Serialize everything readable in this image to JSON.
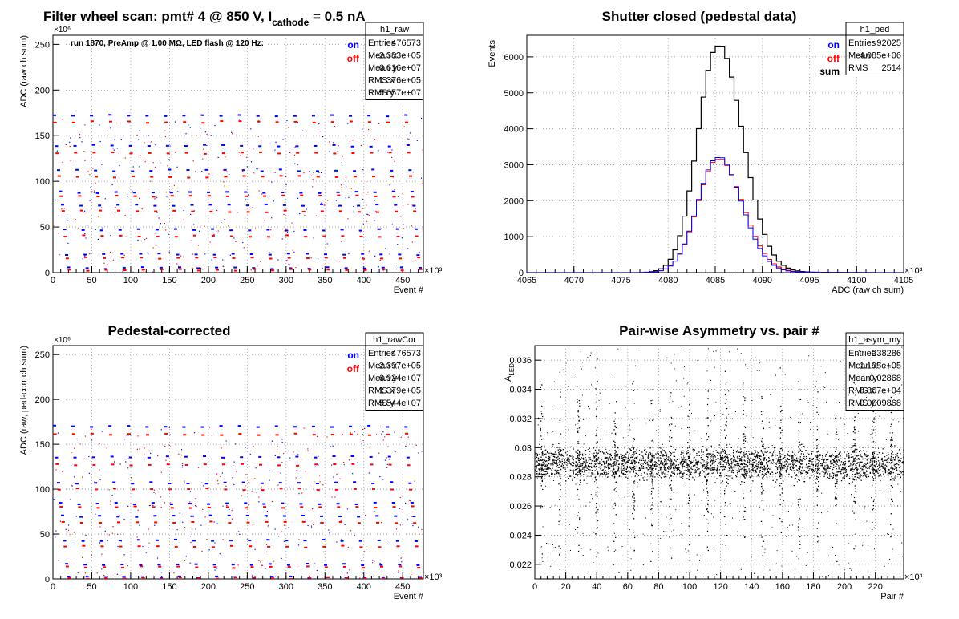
{
  "colors": {
    "on": "#0000ff",
    "off": "#ff0000",
    "sum": "#000000",
    "frame": "#000000",
    "grid": "#999999"
  },
  "chart_data": [
    {
      "type": "scatter",
      "title": "Filter wheel scan: pmt#   4 @   850 V, I",
      "title_sub": "cathode",
      "title_tail": " = 0.5 nA",
      "subtitle": "run 1870, PreAmp @ 1.00 MΩ, LED flash @  120 Hz:",
      "xlabel": "Event #",
      "ylabel": "ADC (raw ch sum)",
      "x_exponent": "×10³",
      "y_exponent": "×10⁶",
      "xlim": [
        0,
        476.6
      ],
      "ylim": [
        0,
        260
      ],
      "xticks": [
        "0",
        "50",
        "100",
        "150",
        "200",
        "250",
        "300",
        "350",
        "400",
        "450"
      ],
      "yticks": [
        "0",
        "50",
        "100",
        "150",
        "200",
        "250"
      ],
      "grid": true,
      "legend": {
        "on": "on",
        "off": "off",
        "placement": "top-right"
      },
      "series": [
        {
          "name": "on",
          "steps": [
            172,
            139,
            112,
            88,
            74,
            47,
            20,
            5
          ]
        },
        {
          "name": "off",
          "steps": [
            165,
            131,
            105,
            84,
            67,
            40,
            16,
            3
          ]
        }
      ],
      "stats": {
        "name": "h1_raw",
        "rows": [
          [
            "Entries",
            "476573"
          ],
          [
            "Mean x",
            "2.383e+05"
          ],
          [
            "Mean y",
            "6.616e+07"
          ],
          [
            "RMS x",
            "1.376e+05"
          ],
          [
            "RMS y",
            "5.657e+07"
          ]
        ]
      }
    },
    {
      "type": "histogram",
      "title": "Shutter closed (pedestal data)",
      "xlabel": "ADC (raw ch sum)",
      "ylabel": "Events",
      "x_exponent": "×10³",
      "xlim": [
        4065,
        4105
      ],
      "ylim": [
        0,
        6600
      ],
      "xticks": [
        "4065",
        "4070",
        "4075",
        "4080",
        "4085",
        "4090",
        "4095",
        "4100",
        "4105"
      ],
      "yticks": [
        "0",
        "1000",
        "2000",
        "3000",
        "4000",
        "5000",
        "6000"
      ],
      "grid": true,
      "legend": {
        "on": "on",
        "off": "off",
        "sum": "sum",
        "placement": "top-right"
      },
      "peak": {
        "x": 4085,
        "sum": 6300,
        "on": 3200,
        "off": 3150
      },
      "stats": {
        "name": "h1_ped",
        "rows": [
          [
            "Entries",
            "92025"
          ],
          [
            "Mean",
            "4.085e+06"
          ],
          [
            "RMS",
            "2514"
          ]
        ]
      }
    },
    {
      "type": "scatter",
      "title": "Pedestal-corrected",
      "xlabel": "Event #",
      "ylabel": "ADC (raw, ped-corr ch sum)",
      "x_exponent": "×10³",
      "y_exponent": "×10⁶",
      "xlim": [
        0,
        476.6
      ],
      "ylim": [
        0,
        260
      ],
      "xticks": [
        "0",
        "50",
        "100",
        "150",
        "200",
        "250",
        "300",
        "350",
        "400",
        "450"
      ],
      "yticks": [
        "0",
        "50",
        "100",
        "150",
        "200",
        "250"
      ],
      "grid": true,
      "legend": {
        "on": "on",
        "off": "off",
        "placement": "top-right"
      },
      "series": [
        {
          "name": "on",
          "steps": [
            170,
            136,
            107,
            84,
            70,
            43,
            16,
            2
          ]
        },
        {
          "name": "off",
          "steps": [
            161,
            127,
            100,
            80,
            63,
            36,
            13,
            1
          ]
        }
      ],
      "stats": {
        "name": "h1_rawCor",
        "rows": [
          [
            "Entries",
            "476573"
          ],
          [
            "Mean x",
            "2.397e+05"
          ],
          [
            "Mean y",
            "6.924e+07"
          ],
          [
            "RMS x",
            "1.379e+05"
          ],
          [
            "RMS y",
            "5.544e+07"
          ]
        ]
      }
    },
    {
      "type": "scatter",
      "title": "Pair-wise Asymmetry vs. pair #",
      "xlabel": "Pair #",
      "ylabel": "A",
      "ylabel_sub": "LED",
      "x_exponent": "×10³",
      "xlim": [
        0,
        238.3
      ],
      "ylim": [
        0.021,
        0.037
      ],
      "xticks": [
        "0",
        "20",
        "40",
        "60",
        "80",
        "100",
        "120",
        "140",
        "160",
        "180",
        "200",
        "220"
      ],
      "yticks": [
        "0.022",
        "0.024",
        "0.026",
        "0.028",
        "0.03",
        "0.032",
        "0.034",
        "0.036"
      ],
      "grid": true,
      "band": {
        "center": 0.0289,
        "half_width": 0.0008
      },
      "stats": {
        "name": "h1_asym_my",
        "rows": [
          [
            "Entries",
            "238286"
          ],
          [
            "Mean x",
            "1.195e+05"
          ],
          [
            "Mean y",
            "0.02868"
          ],
          [
            "RMS x",
            "6.867e+04"
          ],
          [
            "RMS y",
            "0.0009868"
          ]
        ]
      }
    }
  ]
}
